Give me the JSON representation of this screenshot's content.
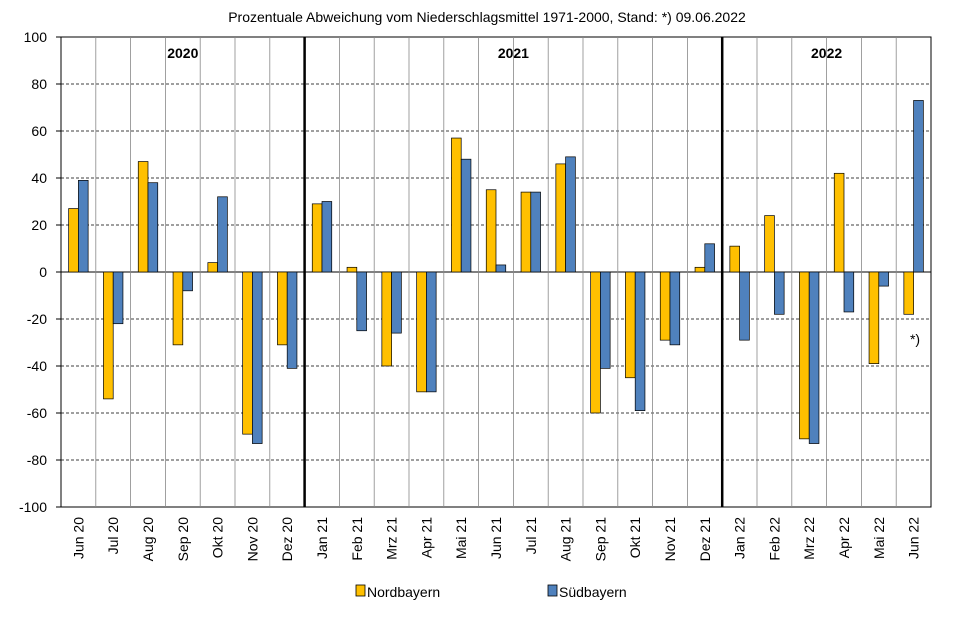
{
  "chart_data": {
    "type": "bar",
    "title": "Prozentuale  Abweichung vom Niederschlagsmittel 1971-2000, Stand: *) 09.06.2022",
    "xlabel": "",
    "ylabel": "",
    "ylim": [
      -100,
      100
    ],
    "yticks": [
      "100",
      "80",
      "60",
      "40",
      "20",
      "0",
      "-20",
      "-40",
      "-60",
      "-80",
      "-100"
    ],
    "categories": [
      "Jun 20",
      "Jul 20",
      "Aug 20",
      "Sep 20",
      "Okt 20",
      "Nov 20",
      "Dez 20",
      "Jan 21",
      "Feb 21",
      "Mrz 21",
      "Apr 21",
      "Mai 21",
      "Jun 21",
      "Jul 21",
      "Aug 21",
      "Sep 21",
      "Okt 21",
      "Nov 21",
      "Dez 21",
      "Jan 22",
      "Feb 22",
      "Mrz 22",
      "Apr 22",
      "Mai 22",
      "Jun 22"
    ],
    "series": [
      {
        "name": "Nordbayern",
        "color": "#FFC000",
        "values": [
          27,
          -54,
          47,
          -31,
          4,
          -69,
          -31,
          29,
          2,
          -40,
          -51,
          57,
          35,
          34,
          46,
          -60,
          -45,
          -29,
          2,
          11,
          24,
          -71,
          42,
          -39,
          -18
        ]
      },
      {
        "name": "Südbayern",
        "color": "#4F81BD",
        "values": [
          39,
          -22,
          38,
          -8,
          32,
          -73,
          -41,
          30,
          -25,
          -26,
          -51,
          48,
          3,
          34,
          49,
          -41,
          -59,
          -31,
          12,
          -29,
          -18,
          -73,
          -17,
          -6,
          73
        ]
      }
    ],
    "year_labels": [
      {
        "label": "2020",
        "start_index": 0,
        "end_index": 6
      },
      {
        "label": "2021",
        "start_index": 7,
        "end_index": 18
      },
      {
        "label": "2022",
        "start_index": 19,
        "end_index": 24
      }
    ],
    "annotation": "*)",
    "grid": true,
    "legend_position": "bottom"
  }
}
